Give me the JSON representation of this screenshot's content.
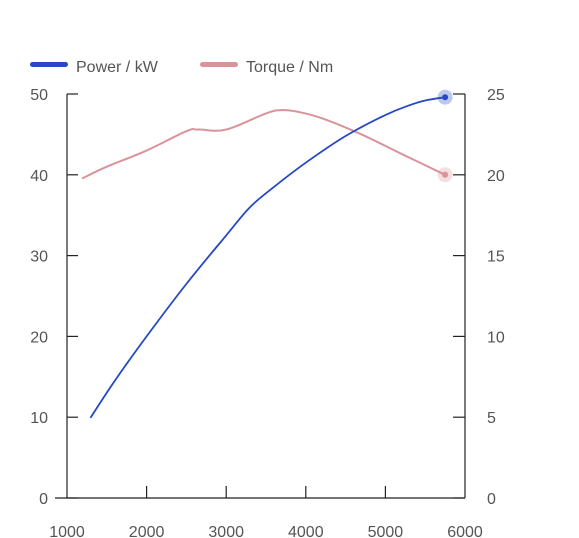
{
  "chart_data": {
    "type": "line",
    "title": "",
    "xlabel": "",
    "ylabel": "",
    "y2label": "",
    "xlim": [
      1000,
      6000
    ],
    "ylim": [
      0,
      50
    ],
    "y2lim": [
      0,
      25
    ],
    "x_ticks": [
      1000,
      2000,
      3000,
      4000,
      5000,
      6000
    ],
    "y_ticks": [
      0,
      10,
      20,
      30,
      40,
      50
    ],
    "y2_ticks": [
      0,
      5,
      10,
      15,
      20,
      25
    ],
    "grid": false,
    "legend_position": "top-left",
    "series": [
      {
        "name": "Power / kW",
        "axis": "left",
        "color": "#2648c4",
        "x": [
          1300,
          1600,
          2000,
          2500,
          3000,
          3300,
          3600,
          4000,
          4500,
          5000,
          5300,
          5500,
          5750
        ],
        "y": [
          10,
          14.5,
          20,
          26.5,
          32.5,
          36,
          38.5,
          41.5,
          44.8,
          47.4,
          48.6,
          49.2,
          49.6
        ],
        "end_marker": true
      },
      {
        "name": "Torque / Nm",
        "axis": "right",
        "color": "#d9939b",
        "x": [
          1200,
          1500,
          2000,
          2500,
          2650,
          3000,
          3500,
          3700,
          3900,
          4200,
          4700,
          5200,
          5750
        ],
        "y": [
          19.8,
          20.5,
          21.5,
          22.7,
          22.8,
          22.8,
          23.8,
          24.0,
          23.9,
          23.5,
          22.5,
          21.3,
          20.0
        ],
        "end_marker": true
      }
    ]
  }
}
